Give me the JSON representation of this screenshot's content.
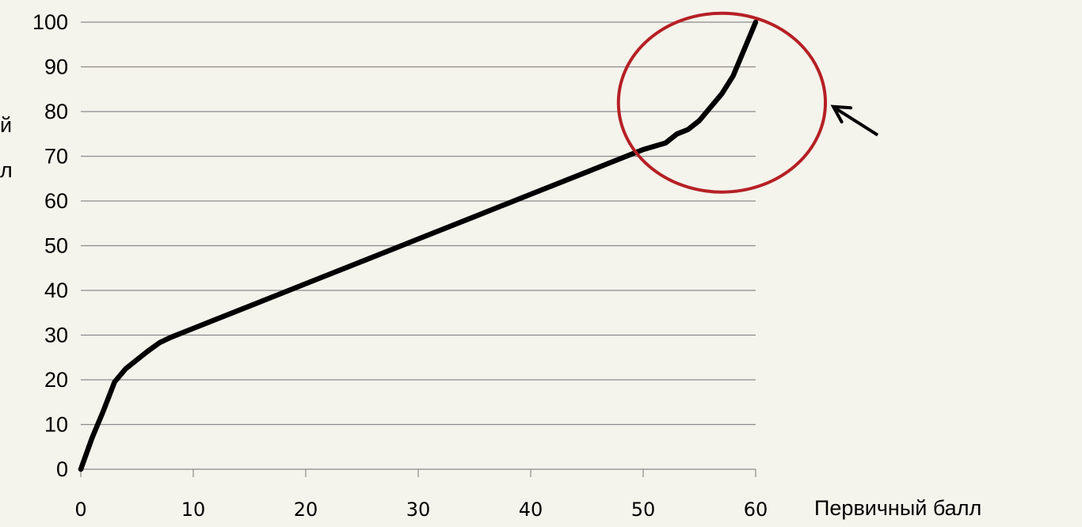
{
  "chart_data": {
    "type": "line",
    "title": "",
    "xlabel": "Первичный балл",
    "ylabel_fragments": [
      "й",
      "л"
    ],
    "xlim": [
      0,
      60
    ],
    "ylim": [
      0,
      100
    ],
    "x_ticks": [
      "0",
      "10",
      "20",
      "30",
      "40",
      "50",
      "60"
    ],
    "y_ticks": [
      "0",
      "10",
      "20",
      "30",
      "40",
      "50",
      "60",
      "70",
      "80",
      "90",
      "100"
    ],
    "grid": "horizontal",
    "series": [
      {
        "color": "#000000",
        "x": [
          0,
          1,
          2,
          3,
          4,
          5,
          6,
          7,
          8,
          10,
          15,
          20,
          25,
          30,
          35,
          40,
          45,
          50,
          52,
          53,
          54,
          55,
          56,
          57,
          58,
          59,
          60
        ],
        "y": [
          0,
          7,
          13,
          19.5,
          22.5,
          24.5,
          26.5,
          28.3,
          29.5,
          31.5,
          36.5,
          41.5,
          46.5,
          51.5,
          56.5,
          61.5,
          66.5,
          71.5,
          73,
          75,
          76,
          78,
          81,
          84,
          88,
          94,
          100
        ]
      }
    ],
    "annotations": [
      {
        "type": "ellipse",
        "color": "#b52025",
        "center": [
          57,
          82
        ],
        "radii": [
          9.2,
          20
        ]
      },
      {
        "type": "arrow",
        "color": "#000000",
        "points_to": "ellipse"
      }
    ]
  }
}
